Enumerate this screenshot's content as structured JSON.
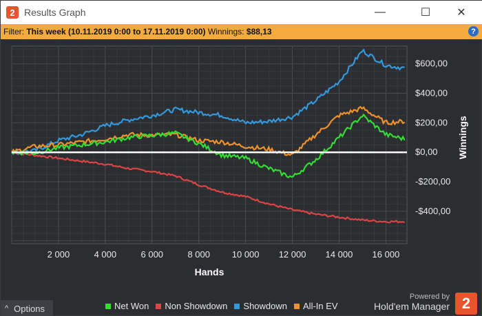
{
  "window": {
    "title": "Results Graph",
    "icon_glyph": "2",
    "minimize_glyph": "—",
    "maximize_glyph": "☐",
    "close_glyph": "✕"
  },
  "filter": {
    "label": "Filter:",
    "value": "This week (10.11.2019 0:00 to 17.11.2019 0:00)",
    "winnings_label": "Winnings:",
    "winnings_value": "$88,13",
    "help_glyph": "?"
  },
  "options": {
    "label": "Options",
    "chevron": "^"
  },
  "branding": {
    "powered": "Powered by",
    "product": "Hold'em Manager",
    "logo_glyph": "2",
    "accent": "#e8542c"
  },
  "chart_data": {
    "type": "line",
    "xlabel": "Hands",
    "ylabel": "Winnings",
    "xlim": [
      0,
      16900
    ],
    "ylim": [
      -620,
      720
    ],
    "x_ticks": [
      2000,
      4000,
      6000,
      8000,
      10000,
      12000,
      14000,
      16000
    ],
    "x_tick_labels": [
      "2 000",
      "4 000",
      "6 000",
      "8 000",
      "10 000",
      "12 000",
      "14 000",
      "16 000"
    ],
    "y_ticks": [
      600,
      400,
      200,
      0,
      -200,
      -400
    ],
    "y_tick_labels": [
      "$600,00",
      "$400,00",
      "$200,00",
      "$0,00",
      "-$200,00",
      "-$400,00"
    ],
    "grid": true,
    "legend_position": "bottom",
    "x": [
      0,
      1000,
      2000,
      3000,
      4000,
      5000,
      6000,
      7000,
      8000,
      9000,
      10000,
      11000,
      12000,
      13000,
      14000,
      15000,
      16000,
      16800
    ],
    "series": [
      {
        "name": "Net Won",
        "color": "#33dd33",
        "values": [
          0,
          -5,
          30,
          50,
          70,
          100,
          115,
          130,
          60,
          -20,
          -40,
          -110,
          -170,
          -50,
          100,
          250,
          120,
          90
        ]
      },
      {
        "name": "Non Showdown",
        "color": "#dd4444",
        "values": [
          0,
          -20,
          -40,
          -60,
          -80,
          -110,
          -130,
          -160,
          -220,
          -270,
          -300,
          -350,
          -390,
          -420,
          -440,
          -460,
          -470,
          -470
        ]
      },
      {
        "name": "Showdown",
        "color": "#3399dd",
        "values": [
          0,
          10,
          80,
          120,
          180,
          220,
          250,
          290,
          270,
          250,
          200,
          210,
          240,
          350,
          480,
          690,
          590,
          570
        ]
      },
      {
        "name": "All-In EV",
        "color": "#f0922b",
        "values": [
          0,
          40,
          50,
          70,
          90,
          120,
          115,
          120,
          80,
          70,
          40,
          20,
          -20,
          120,
          250,
          300,
          200,
          210
        ]
      }
    ]
  }
}
